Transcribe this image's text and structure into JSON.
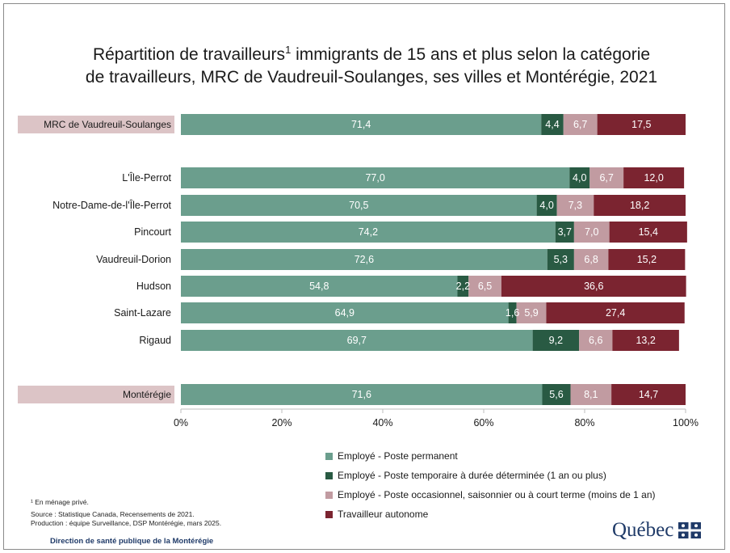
{
  "title": {
    "line1_before": "Répartition de travailleurs",
    "line1_sup": "1",
    "line1_after": " immigrants de 15 ans et plus selon la catégorie",
    "line2": "de travailleurs, MRC de Vaudreuil-Soulanges, ses villes et Montérégie, 2021"
  },
  "colors": {
    "permanent": "#6b9e8d",
    "temporaire": "#295a43",
    "occasionnel": "#c19ba1",
    "autonome": "#7b2430",
    "row_highlight": "#dcc4c6",
    "text_on_bar": "#ffffff",
    "brand": "#1f3a68"
  },
  "chart_data": {
    "type": "bar",
    "orientation": "horizontal",
    "stacked": true,
    "categories": [
      "MRC de Vaudreuil-Soulanges",
      "L'Île-Perrot",
      "Notre-Dame-de-l'Île-Perrot",
      "Pincourt",
      "Vaudreuil-Dorion",
      "Hudson",
      "Saint-Lazare",
      "Rigaud",
      "Montérégie"
    ],
    "highlighted_categories": [
      "MRC de Vaudreuil-Soulanges",
      "Montérégie"
    ],
    "series": [
      {
        "name": "Employé - Poste permanent",
        "values": [
          71.4,
          77.0,
          70.5,
          74.2,
          72.6,
          54.8,
          64.9,
          69.7,
          71.6
        ],
        "labels": [
          "71,4",
          "77,0",
          "70,5",
          "74,2",
          "72,6",
          "54,8",
          "64,9",
          "69,7",
          "71,6"
        ]
      },
      {
        "name": "Employé - Poste temporaire à durée déterminée (1 an ou plus)",
        "values": [
          4.4,
          4.0,
          4.0,
          3.7,
          5.3,
          2.2,
          1.6,
          9.2,
          5.6
        ],
        "labels": [
          "4,4",
          "4,0",
          "4,0",
          "3,7",
          "5,3",
          "2,2",
          "1,6",
          "9,2",
          "5,6"
        ]
      },
      {
        "name": "Employé - Poste occasionnel, saisonnier ou à court terme (moins de 1 an)",
        "values": [
          6.7,
          6.7,
          7.3,
          7.0,
          6.8,
          6.5,
          5.9,
          6.6,
          8.1
        ],
        "labels": [
          "6,7",
          "6,7",
          "7,3",
          "7,0",
          "6,8",
          "6,5",
          "5,9",
          "6,6",
          "8,1"
        ]
      },
      {
        "name": "Travailleur autonome",
        "values": [
          17.5,
          12.0,
          18.2,
          15.4,
          15.2,
          36.6,
          27.4,
          13.2,
          14.7
        ],
        "labels": [
          "17,5",
          "12,0",
          "18,2",
          "15,4",
          "15,2",
          "36,6",
          "27,4",
          "13,2",
          "14,7"
        ]
      }
    ],
    "xlim": [
      0,
      100
    ],
    "xticks": [
      "0%",
      "20%",
      "40%",
      "60%",
      "80%",
      "100%"
    ],
    "legend_position": "bottom"
  },
  "notes": {
    "footnote": "¹ En ménage privé.",
    "source": "Source : Statistique Canada, Recensements de 2021.",
    "production": "Production : équipe Surveillance, DSP Montérégie, mars 2025.",
    "direction": "Direction de santé publique de la Montérégie"
  },
  "logo": {
    "text": "Québec",
    "icon": "fleur-de-lis-flag-icon"
  }
}
